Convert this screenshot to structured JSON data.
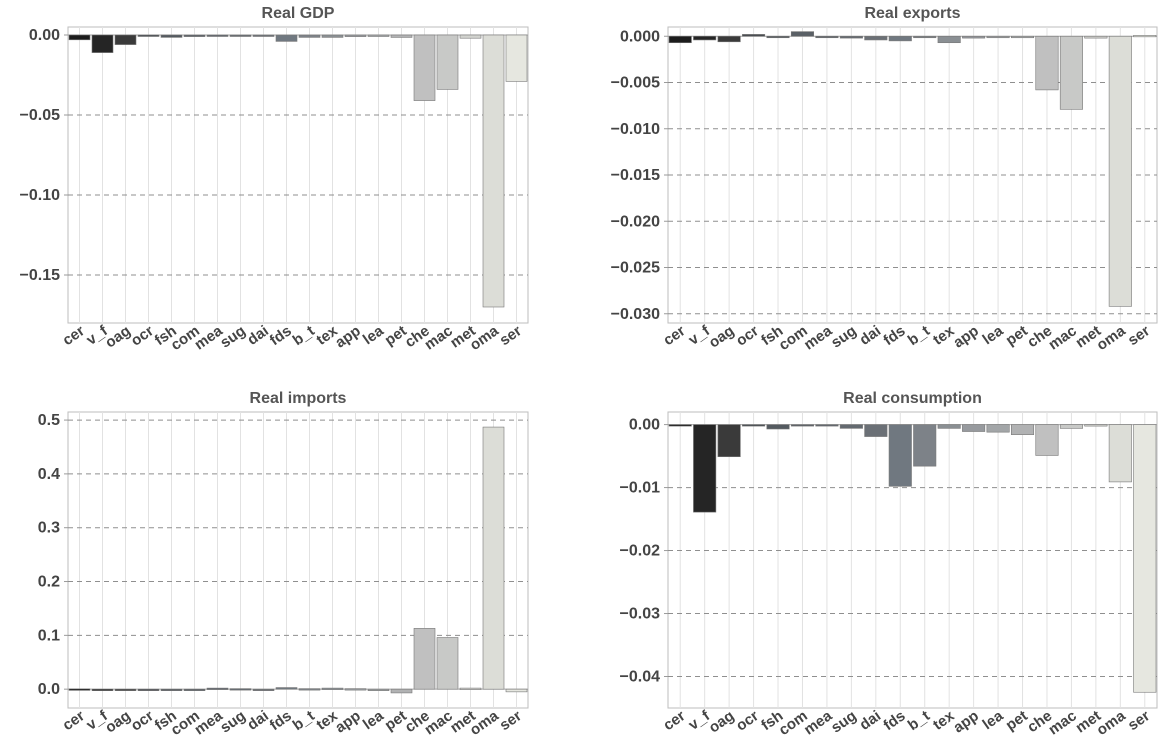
{
  "chart_data": [
    {
      "type": "bar",
      "title": "Real GDP",
      "categories": [
        "cer",
        "v_f",
        "oag",
        "ocr",
        "fsh",
        "com",
        "mea",
        "sug",
        "dai",
        "fds",
        "b_t",
        "tex",
        "app",
        "lea",
        "pet",
        "che",
        "mac",
        "met",
        "oma",
        "ser"
      ],
      "tick_labels": [
        "cer",
        "v_f",
        "oag",
        "ocr",
        "fsh",
        "com",
        "mea",
        "sug",
        "dai",
        "fds",
        "b_t",
        "tex",
        "app",
        "lea",
        "pet",
        "che",
        "mac",
        "met",
        "oma",
        "ser"
      ],
      "values": [
        -0.003,
        -0.011,
        -0.006,
        -0.0005,
        -0.0015,
        -0.001,
        -0.0008,
        -0.0005,
        -0.0005,
        -0.004,
        -0.0015,
        -0.0015,
        -0.001,
        -0.0008,
        -0.0015,
        -0.041,
        -0.034,
        -0.002,
        -0.17,
        -0.029
      ],
      "colors": [
        "#1c1c1c",
        "#252525",
        "#3a3a3a",
        "#474b50",
        "#545a60",
        "#5a6066",
        "#5f656c",
        "#646a70",
        "#6b7076",
        "#707880",
        "#7d8288",
        "#8a8f93",
        "#979a9e",
        "#a3a6a8",
        "#b1b2b3",
        "#c0c0c0",
        "#c8c9c7",
        "#d2d3cf",
        "#dcddd7",
        "#e6e7e0"
      ],
      "yticks": [
        0.0,
        -0.05,
        -0.1,
        -0.15
      ],
      "ytick_labels": [
        "0.00",
        "−0.05",
        "−0.10",
        "−0.15"
      ],
      "ylim": [
        -0.18,
        0.005
      ],
      "grid": true
    },
    {
      "type": "bar",
      "title": "Real exports",
      "categories": [
        "cer",
        "v_f",
        "oag",
        "ocr",
        "fsh",
        "com",
        "mea",
        "sug",
        "dai",
        "fds",
        "b_t",
        "tex",
        "app",
        "lea",
        "pet",
        "che",
        "mac",
        "met",
        "oma",
        "ser"
      ],
      "tick_labels": [
        "cer",
        "v_f",
        "oag",
        "ocr",
        "fsh",
        "com",
        "mea",
        "sug",
        "dai",
        "fds",
        "b_t",
        "tex",
        "app",
        "lea",
        "pet",
        "che",
        "mac",
        "met",
        "oma",
        "ser"
      ],
      "values": [
        -0.0007,
        -0.0004,
        -0.0006,
        0.0002,
        -0.0001,
        0.0005,
        -0.0001,
        -0.0002,
        -0.0004,
        -0.0005,
        -0.0001,
        -0.0007,
        -0.0002,
        -0.0001,
        0.0,
        -0.0058,
        -0.0079,
        -0.0002,
        -0.0292,
        0.0001
      ],
      "colors": [
        "#1c1c1c",
        "#252525",
        "#3a3a3a",
        "#474b50",
        "#545a60",
        "#5a6066",
        "#5f656c",
        "#646a70",
        "#6b7076",
        "#707880",
        "#7d8288",
        "#8a8f93",
        "#979a9e",
        "#a3a6a8",
        "#b1b2b3",
        "#c0c0c0",
        "#c8c9c7",
        "#d2d3cf",
        "#dcddd7",
        "#e6e7e0"
      ],
      "yticks": [
        0.0,
        -0.005,
        -0.01,
        -0.015,
        -0.02,
        -0.025,
        -0.03
      ],
      "ytick_labels": [
        "0.000",
        "−0.005",
        "−0.010",
        "−0.015",
        "−0.020",
        "−0.025",
        "−0.030"
      ],
      "ylim": [
        -0.031,
        0.001
      ],
      "grid": true
    },
    {
      "type": "bar",
      "title": "Real imports",
      "categories": [
        "cer",
        "v_f",
        "oag",
        "ocr",
        "fsh",
        "com",
        "mea",
        "sug",
        "dai",
        "fds",
        "b_t",
        "tex",
        "app",
        "lea",
        "pet",
        "che",
        "mac",
        "met",
        "oma",
        "ser"
      ],
      "tick_labels": [
        "cer",
        "v_f",
        "oag",
        "ocr",
        "fsh",
        "com",
        "mea",
        "sug",
        "dai",
        "fds",
        "b_t",
        "tex",
        "app",
        "lea",
        "pet",
        "che",
        "mac",
        "met",
        "oma",
        "ser"
      ],
      "values": [
        0.0005,
        0.0,
        -0.0005,
        0.0,
        0.0,
        0.0,
        0.002,
        0.001,
        0.0,
        0.003,
        0.001,
        0.002,
        0.001,
        0.0,
        -0.007,
        0.113,
        0.096,
        0.002,
        0.487,
        -0.005
      ],
      "colors": [
        "#1c1c1c",
        "#252525",
        "#3a3a3a",
        "#474b50",
        "#545a60",
        "#5a6066",
        "#5f656c",
        "#646a70",
        "#6b7076",
        "#707880",
        "#7d8288",
        "#8a8f93",
        "#979a9e",
        "#a3a6a8",
        "#b1b2b3",
        "#c0c0c0",
        "#c8c9c7",
        "#d2d3cf",
        "#dcddd7",
        "#e6e7e0"
      ],
      "yticks": [
        0.0,
        0.1,
        0.2,
        0.3,
        0.4,
        0.5
      ],
      "ytick_labels": [
        "0.0",
        "0.1",
        "0.2",
        "0.3",
        "0.4",
        "0.5"
      ],
      "ylim": [
        -0.035,
        0.515
      ],
      "grid": true
    },
    {
      "type": "bar",
      "title": "Real consumption",
      "categories": [
        "cer",
        "v_f",
        "oag",
        "ocr",
        "fsh",
        "com",
        "mea",
        "sug",
        "dai",
        "fds",
        "b_t",
        "tex",
        "app",
        "lea",
        "pet",
        "che",
        "mac",
        "met",
        "oma",
        "ser"
      ],
      "tick_labels": [
        "cer",
        "v_f",
        "oag",
        "ocr",
        "fsh",
        "com",
        "mea",
        "sug",
        "dai",
        "fds",
        "b_t",
        "tex",
        "app",
        "lea",
        "pet",
        "che",
        "mac",
        "met",
        "oma",
        "ser"
      ],
      "values": [
        -0.0002,
        -0.0139,
        -0.0051,
        -0.0001,
        -0.0007,
        -0.0002,
        -0.0001,
        -0.0006,
        -0.0019,
        -0.0098,
        -0.0066,
        -0.0006,
        -0.0011,
        -0.0012,
        -0.0016,
        -0.0049,
        -0.0006,
        -0.0001,
        -0.0091,
        -0.0425
      ],
      "colors": [
        "#1c1c1c",
        "#252525",
        "#3a3a3a",
        "#474b50",
        "#545a60",
        "#5a6066",
        "#5f656c",
        "#646a70",
        "#6b7076",
        "#707880",
        "#7d8288",
        "#8a8f93",
        "#979a9e",
        "#a3a6a8",
        "#b1b2b3",
        "#c0c0c0",
        "#c8c9c7",
        "#d2d3cf",
        "#dcddd7",
        "#e6e7e0"
      ],
      "yticks": [
        0.0,
        -0.01,
        -0.02,
        -0.03,
        -0.04
      ],
      "ytick_labels": [
        "0.00",
        "−0.01",
        "−0.02",
        "−0.03",
        "−0.04"
      ],
      "ylim": [
        -0.045,
        0.002
      ],
      "grid": true
    }
  ]
}
